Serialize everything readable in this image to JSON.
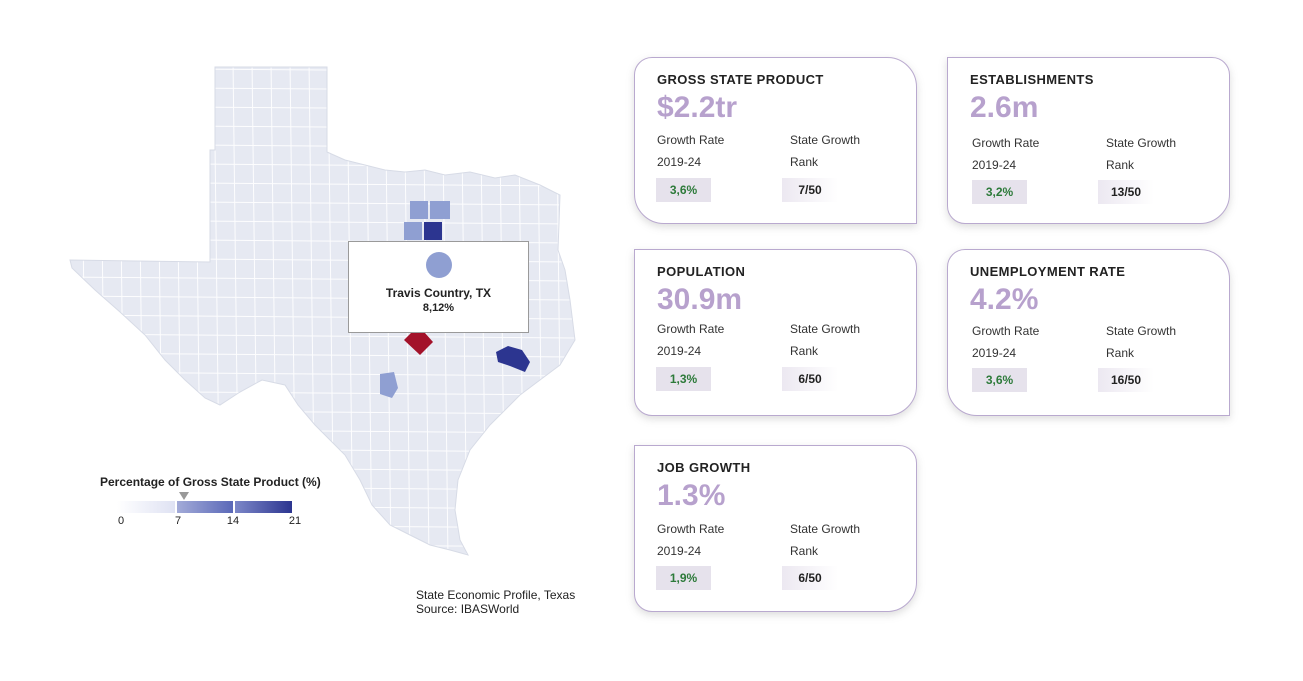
{
  "tooltip": {
    "county": "Travis Country, TX",
    "value": "8,12%"
  },
  "legend": {
    "title": "Percentage of Gross State Product (%)",
    "ticks": [
      "0",
      "7",
      "14",
      "21"
    ],
    "colors": [
      "#f3f3fb",
      "#7c87c8",
      "#2c3590"
    ]
  },
  "source": {
    "line1": "State Economic Profile, Texas",
    "line2": "Source: IBASWorld"
  },
  "map": {
    "base_color": "#e6e9f2",
    "highlight_colors": {
      "red": "#a3122a",
      "dark_blue": "#2c3590",
      "mid_blue": "#5a68b8",
      "light_blue": "#8f9fd2"
    }
  },
  "cards": [
    {
      "title": "GROSS STATE PRODUCT",
      "value": "$2.2tr",
      "growth_label_1": "Growth Rate",
      "growth_label_2": "2019-24",
      "rank_label_1": "State Growth",
      "rank_label_2": "Rank",
      "growth": "3,6%",
      "rank": "7/50"
    },
    {
      "title": "ESTABLISHMENTS",
      "value": "2.6m",
      "growth_label_1": "Growth Rate",
      "growth_label_2": "2019-24",
      "rank_label_1": "State Growth",
      "rank_label_2": "Rank",
      "growth": "3,2%",
      "rank": "13/50"
    },
    {
      "title": "POPULATION",
      "value": "30.9m",
      "growth_label_1": "Growth Rate",
      "growth_label_2": "2019-24",
      "rank_label_1": "State Growth",
      "rank_label_2": "Rank",
      "growth": "1,3%",
      "rank": "6/50"
    },
    {
      "title": "UNEMPLOYMENT RATE",
      "value": "4.2%",
      "growth_label_1": "Growth Rate",
      "growth_label_2": "2019-24",
      "rank_label_1": "State Growth",
      "rank_label_2": "Rank",
      "growth": "3,6%",
      "rank": "16/50"
    },
    {
      "title": "JOB GROWTH",
      "value": "1.3%",
      "growth_label_1": "Growth Rate",
      "growth_label_2": "2019-24",
      "rank_label_1": "State Growth",
      "rank_label_2": "Rank",
      "growth": "1,9%",
      "rank": "6/50"
    }
  ]
}
